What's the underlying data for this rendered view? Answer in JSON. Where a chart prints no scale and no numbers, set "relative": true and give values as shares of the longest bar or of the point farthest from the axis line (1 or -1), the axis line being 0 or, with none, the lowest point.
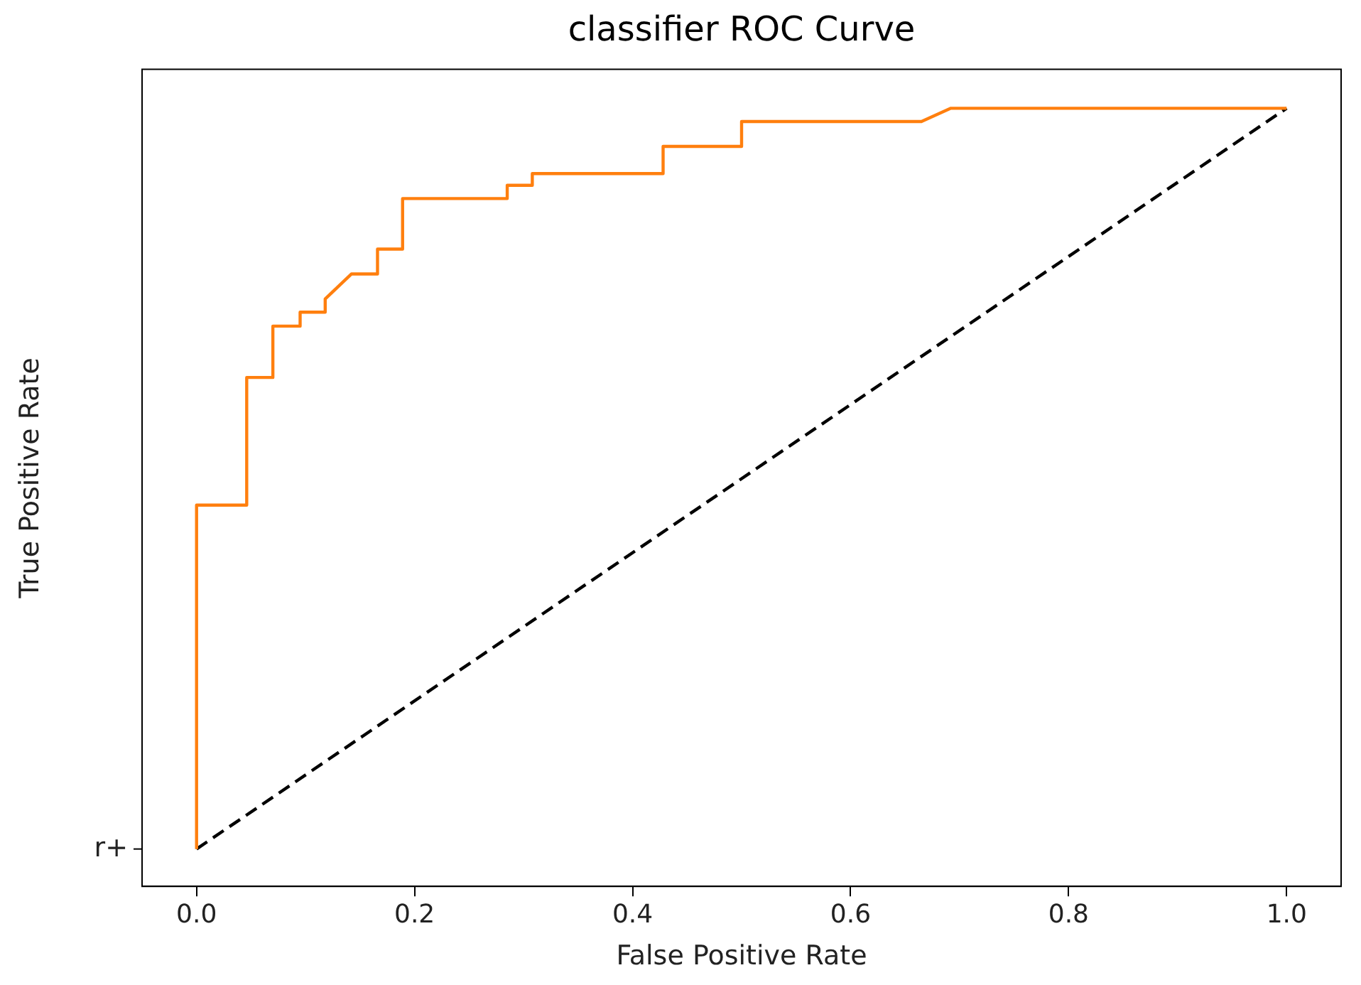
{
  "chart_data": {
    "type": "line",
    "title": "classifier ROC Curve",
    "xlabel": "False Positive Rate",
    "ylabel": "True Positive Rate",
    "relative": true,
    "xlim": [
      -0.05,
      1.05
    ],
    "xticks": [
      {
        "value": 0,
        "label": "0.0"
      },
      {
        "value": 0.2,
        "label": "0.2"
      },
      {
        "value": 0.4,
        "label": "0.4"
      },
      {
        "value": 0.6,
        "label": "0.6"
      },
      {
        "value": 0.8,
        "label": "0.8"
      },
      {
        "value": 1,
        "label": "1.0"
      }
    ],
    "grid": false,
    "legend": false,
    "marker": "none",
    "annotations": [
      "r+"
    ],
    "series": [
      {
        "type": "line",
        "color": "#ff7f0e",
        "line_style": "solid",
        "x": [
          0,
          0,
          0.046,
          0.046,
          0.07,
          0.07,
          0.095,
          0.095,
          0.118,
          0.118,
          0.142,
          0.142,
          0.166,
          0.166,
          0.189,
          0.189,
          0.285,
          0.285,
          0.308,
          0.308,
          0.428,
          0.428,
          0.5,
          0.5,
          0.665,
          0.692,
          1
        ],
        "values": [
          0.048,
          0.49,
          0.49,
          0.654,
          0.654,
          0.72,
          0.72,
          0.738,
          0.738,
          0.755,
          0.787,
          0.787,
          0.787,
          0.819,
          0.819,
          0.884,
          0.884,
          0.901,
          0.901,
          0.916,
          0.916,
          0.951,
          0.951,
          0.983,
          0.983,
          1,
          1
        ]
      },
      {
        "type": "line",
        "color": "#000000",
        "line_style": "dashed",
        "x": [
          0,
          1
        ],
        "values": [
          0.048,
          1
        ]
      }
    ]
  }
}
